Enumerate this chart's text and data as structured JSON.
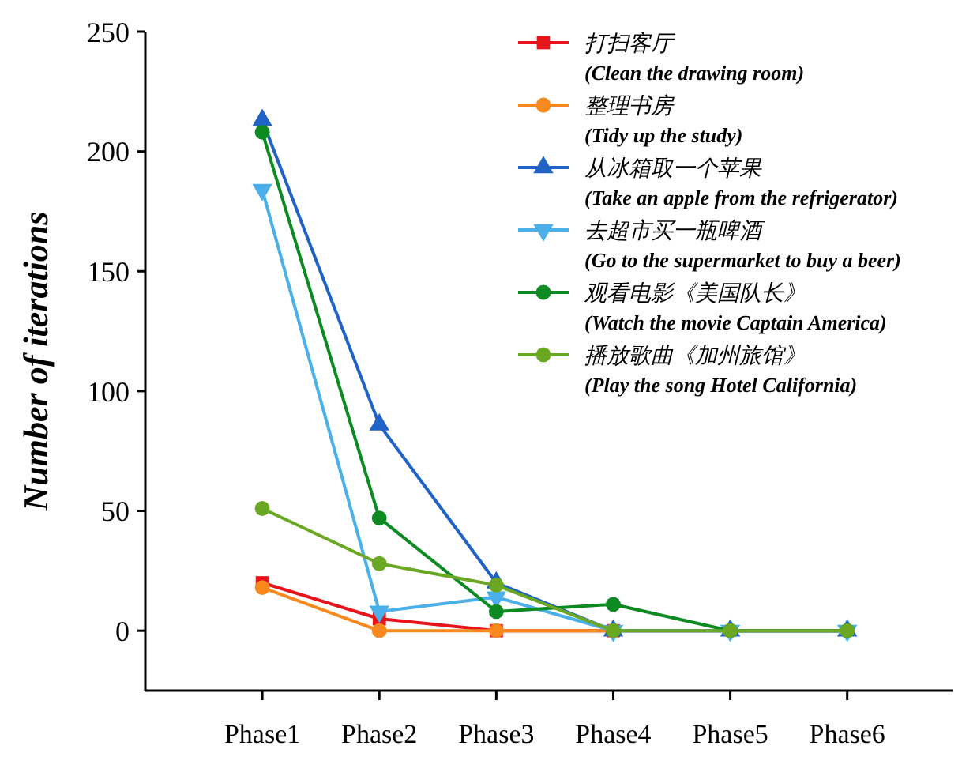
{
  "chart_data": {
    "type": "line",
    "ylabel": "Number of iterations",
    "categories": [
      "Phase1",
      "Phase2",
      "Phase3",
      "Phase4",
      "Phase5",
      "Phase6"
    ],
    "ylim": [
      -25,
      250
    ],
    "yticks": [
      0,
      50,
      100,
      150,
      200,
      250
    ],
    "grid": false,
    "legend": "top right",
    "line_style": "solid",
    "series": [
      {
        "name": "打扫客厅\n(Clean the drawing room)",
        "color": "#e8141c",
        "marker": "square",
        "values": [
          20,
          5,
          0,
          0,
          null,
          null
        ]
      },
      {
        "name": "整理书房\n(Tidy up the study)",
        "color": "#f7891f",
        "marker": "circle",
        "values": [
          18,
          0,
          0,
          0,
          0,
          0
        ]
      },
      {
        "name": "从冰箱取一个苹果\n(Take an apple from the refrigerator)",
        "color": "#1f63c6",
        "marker": "triangle",
        "values": [
          213,
          86,
          20,
          0,
          0,
          0
        ]
      },
      {
        "name": "去超市买一瓶啤酒\n(Go to the supermarket to buy a beer)",
        "color": "#4bb0ea",
        "marker": "triangle-down",
        "values": [
          184,
          8,
          14,
          0,
          0,
          0
        ]
      },
      {
        "name": "观看电影《美国队长》\n(Watch the movie Captain America)",
        "color": "#0e8a22",
        "marker": "circle",
        "values": [
          208,
          47,
          8,
          11,
          0,
          0
        ]
      },
      {
        "name": "播放歌曲《加州旅馆》\n(Play the song Hotel California)",
        "color": "#6aa824",
        "marker": "circle",
        "values": [
          51,
          28,
          19,
          0,
          0,
          0
        ]
      }
    ]
  }
}
